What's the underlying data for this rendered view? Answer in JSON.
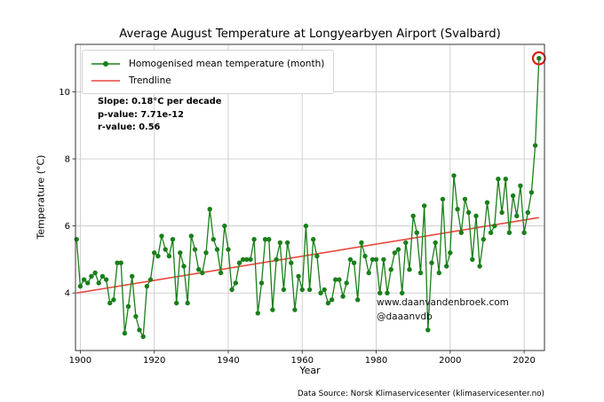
{
  "title": "Average August Temperature at Longyearbyen Airport (Svalbard)",
  "axes": {
    "xlabel": "Year",
    "ylabel": "Temperature (°C)",
    "xticks": [
      1900,
      1920,
      1940,
      1960,
      1980,
      2000,
      2020
    ],
    "yticks": [
      4,
      6,
      8,
      10
    ],
    "xlim": [
      1898.7,
      2025.5
    ],
    "ylim": [
      2.285,
      11.415
    ],
    "grid": true
  },
  "legend": {
    "series": "Homogenised mean temperature (month)",
    "trend": "Trendline"
  },
  "annotation": {
    "slope": "Slope: 0.18°C per decade",
    "p_value": "p-value: 7.71e-12",
    "r_value": "r-value: 0.56"
  },
  "watermark": {
    "line1": "www.daanvandenbroek.com",
    "line2": "@daaanvdb"
  },
  "footer": {
    "data_source": "Data Source: Norsk Klimaservicesenter (klimaservicesenter.no)"
  },
  "colors": {
    "series": "#1a7f1a",
    "trend": "#e8483d",
    "highlight_ring": "#dd1c10",
    "grid": "#cccccc",
    "spine": "#333333",
    "text": "#000000"
  },
  "chart_data": {
    "type": "line",
    "title": "Average August Temperature at Longyearbyen Airport (Svalbard)",
    "xlabel": "Year",
    "ylabel": "Temperature (°C)",
    "xlim": [
      1898.7,
      2025.5
    ],
    "ylim": [
      2.285,
      11.415
    ],
    "legend_position": "upper left",
    "grid": true,
    "years": [
      1899,
      1900,
      1901,
      1902,
      1903,
      1904,
      1905,
      1906,
      1907,
      1908,
      1909,
      1910,
      1911,
      1912,
      1913,
      1914,
      1915,
      1916,
      1917,
      1918,
      1919,
      1920,
      1921,
      1922,
      1923,
      1924,
      1925,
      1926,
      1927,
      1928,
      1929,
      1930,
      1931,
      1932,
      1933,
      1934,
      1935,
      1936,
      1937,
      1938,
      1939,
      1940,
      1941,
      1942,
      1943,
      1944,
      1945,
      1946,
      1947,
      1948,
      1949,
      1950,
      1951,
      1952,
      1953,
      1954,
      1955,
      1956,
      1957,
      1958,
      1959,
      1960,
      1961,
      1962,
      1963,
      1964,
      1965,
      1966,
      1967,
      1968,
      1969,
      1970,
      1971,
      1972,
      1973,
      1974,
      1975,
      1976,
      1977,
      1978,
      1979,
      1980,
      1981,
      1982,
      1983,
      1984,
      1985,
      1986,
      1987,
      1988,
      1989,
      1990,
      1991,
      1992,
      1993,
      1994,
      1995,
      1996,
      1997,
      1998,
      1999,
      2000,
      2001,
      2002,
      2003,
      2004,
      2005,
      2006,
      2007,
      2008,
      2009,
      2010,
      2011,
      2012,
      2013,
      2014,
      2015,
      2016,
      2017,
      2018,
      2019,
      2020,
      2021,
      2022,
      2023,
      2024
    ],
    "series": [
      {
        "name": "Homogenised mean temperature (month)",
        "values": [
          5.6,
          4.2,
          4.4,
          4.3,
          4.5,
          4.6,
          4.3,
          4.5,
          4.4,
          3.7,
          3.8,
          4.9,
          4.9,
          2.8,
          3.6,
          4.5,
          3.3,
          2.9,
          2.7,
          4.2,
          4.4,
          5.2,
          5.1,
          5.7,
          5.3,
          5.1,
          5.6,
          3.7,
          5.2,
          4.8,
          3.7,
          5.7,
          5.3,
          4.7,
          4.6,
          5.2,
          6.5,
          5.6,
          5.3,
          4.6,
          6.0,
          5.3,
          4.1,
          4.3,
          4.9,
          5.0,
          5.0,
          5.0,
          5.6,
          3.4,
          4.3,
          5.6,
          5.6,
          3.5,
          5.0,
          5.5,
          4.1,
          5.5,
          4.9,
          3.5,
          4.5,
          4.1,
          6.0,
          4.1,
          5.6,
          5.1,
          4.0,
          4.1,
          3.7,
          3.8,
          4.4,
          4.4,
          3.9,
          4.3,
          5.0,
          4.9,
          3.8,
          5.5,
          5.1,
          4.6,
          5.0,
          5.0,
          4.0,
          5.0,
          4.0,
          4.7,
          5.2,
          5.3,
          4.0,
          5.5,
          4.7,
          6.3,
          5.8,
          4.6,
          6.6,
          2.9,
          4.9,
          5.5,
          4.6,
          6.8,
          4.8,
          5.2,
          7.5,
          6.5,
          5.8,
          6.8,
          6.4,
          5.0,
          6.3,
          4.8,
          5.6,
          6.7,
          5.8,
          6.0,
          7.4,
          6.4,
          7.4,
          5.8,
          6.9,
          6.3,
          7.2,
          5.8,
          6.4,
          7.0,
          8.4,
          11.0
        ]
      }
    ],
    "trendline": {
      "name": "Trendline",
      "x1": 1899,
      "y1": 4.0,
      "x2": 2024,
      "y2": 6.25,
      "slope_per_decade": 0.18,
      "p_value": 7.71e-12,
      "r_value": 0.56
    },
    "highlight_point": {
      "year": 2024,
      "value": 11.0
    }
  }
}
